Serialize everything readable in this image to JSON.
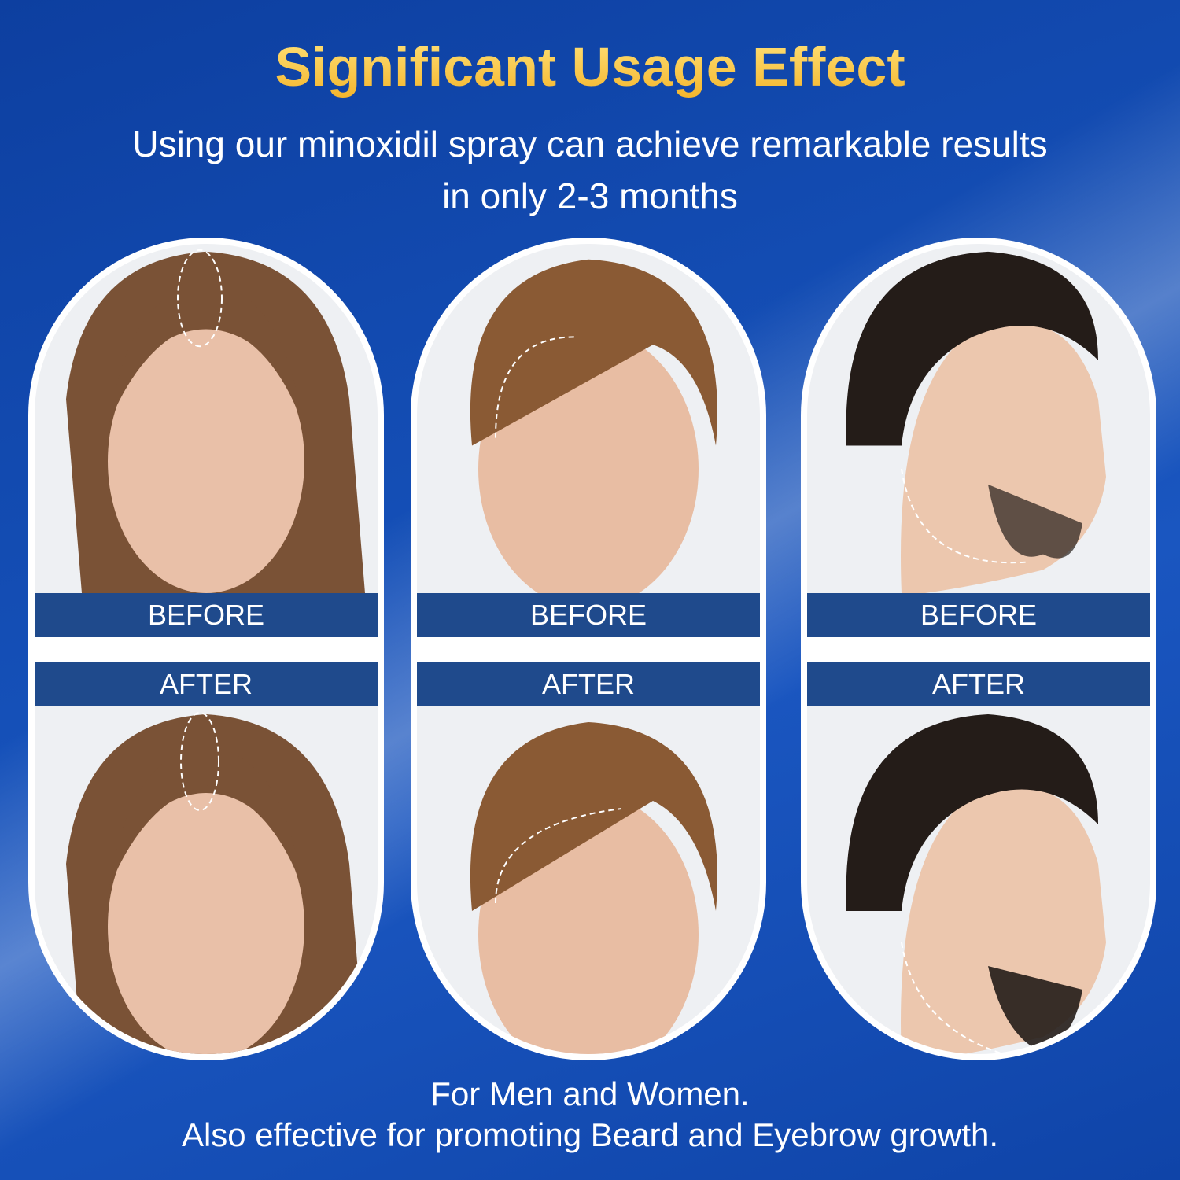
{
  "header": {
    "title": "Significant Usage Effect",
    "subtitle": "Using our minoxidil spray can achieve remarkable results in only 2-3 months"
  },
  "panels": [
    {
      "subject": "woman-hair-part",
      "before_label": "BEFORE",
      "after_label": "AFTER"
    },
    {
      "subject": "man-hairline",
      "before_label": "BEFORE",
      "after_label": "AFTER"
    },
    {
      "subject": "man-beard",
      "before_label": "BEFORE",
      "after_label": "AFTER"
    }
  ],
  "footer": {
    "line1": "For Men and Women.",
    "line2": "Also effective for promoting Beard and Eyebrow growth."
  },
  "colors": {
    "background": "#1550b8",
    "title_gold": "#f4c040",
    "label_band": "#1f4a8c"
  }
}
